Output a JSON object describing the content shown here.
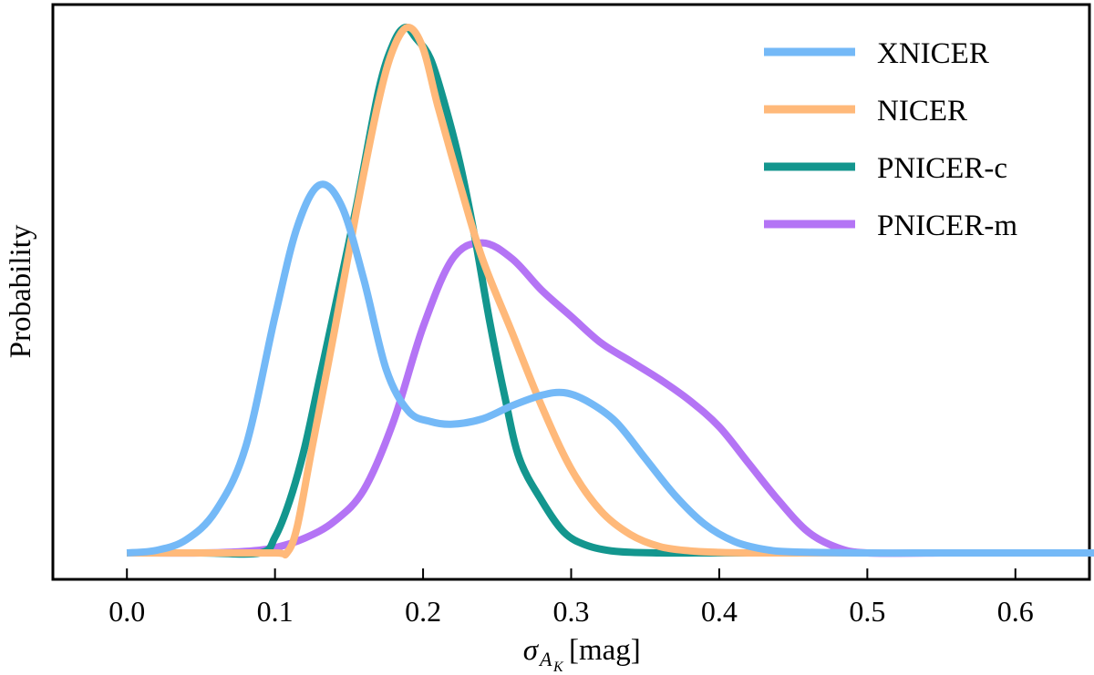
{
  "chart_data": {
    "type": "line",
    "title": "",
    "xlabel": "[mag]",
    "xlabel_symbol": "σ",
    "xlabel_subscript": "A",
    "xlabel_subsubscript": "K",
    "ylabel": "Probability",
    "xlim": [
      -0.05,
      0.65
    ],
    "ylim": [
      0,
      1.06
    ],
    "x_ticks": [
      0.0,
      0.1,
      0.2,
      0.3,
      0.4,
      0.5,
      0.6
    ],
    "x_tick_labels": [
      "0.0",
      "0.1",
      "0.2",
      "0.3",
      "0.4",
      "0.5",
      "0.6"
    ],
    "y_ticks_shown": false,
    "grid": false,
    "legend_position": "top-right",
    "series": [
      {
        "name": "XNICER",
        "color": "#74b9f7",
        "x": [
          0.0,
          0.02,
          0.04,
          0.06,
          0.08,
          0.1,
          0.115,
          0.13,
          0.145,
          0.16,
          0.175,
          0.19,
          0.205,
          0.22,
          0.24,
          0.26,
          0.28,
          0.295,
          0.31,
          0.33,
          0.35,
          0.37,
          0.39,
          0.41,
          0.43,
          0.45,
          0.5,
          0.55,
          0.6,
          0.65
        ],
        "y": [
          0.0,
          0.005,
          0.025,
          0.08,
          0.2,
          0.45,
          0.62,
          0.7,
          0.66,
          0.52,
          0.35,
          0.27,
          0.25,
          0.245,
          0.255,
          0.28,
          0.3,
          0.305,
          0.29,
          0.25,
          0.18,
          0.11,
          0.055,
          0.022,
          0.007,
          0.002,
          0.0,
          0.0,
          0.0,
          0.0
        ]
      },
      {
        "name": "NICER",
        "color": "#ffb97a",
        "x": [
          0.0,
          0.05,
          0.1,
          0.108,
          0.115,
          0.125,
          0.14,
          0.155,
          0.17,
          0.18,
          0.19,
          0.2,
          0.21,
          0.225,
          0.24,
          0.26,
          0.28,
          0.3,
          0.32,
          0.34,
          0.36,
          0.38,
          0.4,
          0.42,
          0.45,
          0.5
        ],
        "y": [
          0.0,
          0.0,
          0.0,
          0.0,
          0.05,
          0.2,
          0.42,
          0.65,
          0.86,
          0.96,
          1.0,
          0.96,
          0.85,
          0.7,
          0.56,
          0.42,
          0.28,
          0.16,
          0.08,
          0.035,
          0.012,
          0.004,
          0.001,
          0.0,
          0.0,
          0.0
        ]
      },
      {
        "name": "PNICER-c",
        "color": "#13968e",
        "x": [
          0.0,
          0.05,
          0.09,
          0.1,
          0.11,
          0.12,
          0.13,
          0.14,
          0.155,
          0.17,
          0.18,
          0.188,
          0.195,
          0.205,
          0.215,
          0.225,
          0.235,
          0.245,
          0.255,
          0.265,
          0.28,
          0.295,
          0.31,
          0.33,
          0.36,
          0.4,
          0.5
        ],
        "y": [
          0.0,
          0.0,
          0.0,
          0.03,
          0.1,
          0.2,
          0.33,
          0.46,
          0.66,
          0.88,
          0.97,
          1.0,
          0.98,
          0.94,
          0.85,
          0.74,
          0.6,
          0.44,
          0.3,
          0.18,
          0.1,
          0.04,
          0.015,
          0.003,
          0.0,
          0.0,
          0.0
        ]
      },
      {
        "name": "PNICER-m",
        "color": "#b474f5",
        "x": [
          0.0,
          0.05,
          0.08,
          0.1,
          0.12,
          0.14,
          0.16,
          0.18,
          0.2,
          0.22,
          0.24,
          0.26,
          0.28,
          0.3,
          0.32,
          0.34,
          0.36,
          0.38,
          0.4,
          0.42,
          0.44,
          0.46,
          0.48,
          0.5,
          0.55
        ],
        "y": [
          0.0,
          0.0,
          0.003,
          0.01,
          0.028,
          0.06,
          0.12,
          0.25,
          0.43,
          0.56,
          0.59,
          0.56,
          0.5,
          0.45,
          0.4,
          0.365,
          0.33,
          0.29,
          0.24,
          0.17,
          0.1,
          0.04,
          0.01,
          0.0,
          0.0
        ]
      }
    ]
  }
}
